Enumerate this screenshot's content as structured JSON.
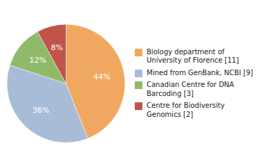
{
  "chart_data": {
    "type": "pie",
    "categories": [
      "Biology department of\nUniversity of Florence [11]",
      "Mined from GenBank, NCBI [9]",
      "Canadian Centre for DNA\nBarcoding [3]",
      "Centre for Biodiversity\nGenomics [2]"
    ],
    "values": [
      44,
      36,
      12,
      8
    ],
    "value_labels": [
      "44%",
      "36%",
      "12%",
      "8%"
    ],
    "colors": [
      "#f0a860",
      "#a8bcd8",
      "#8fba6a",
      "#c0534a"
    ],
    "data_labels": true,
    "legend": "right"
  }
}
